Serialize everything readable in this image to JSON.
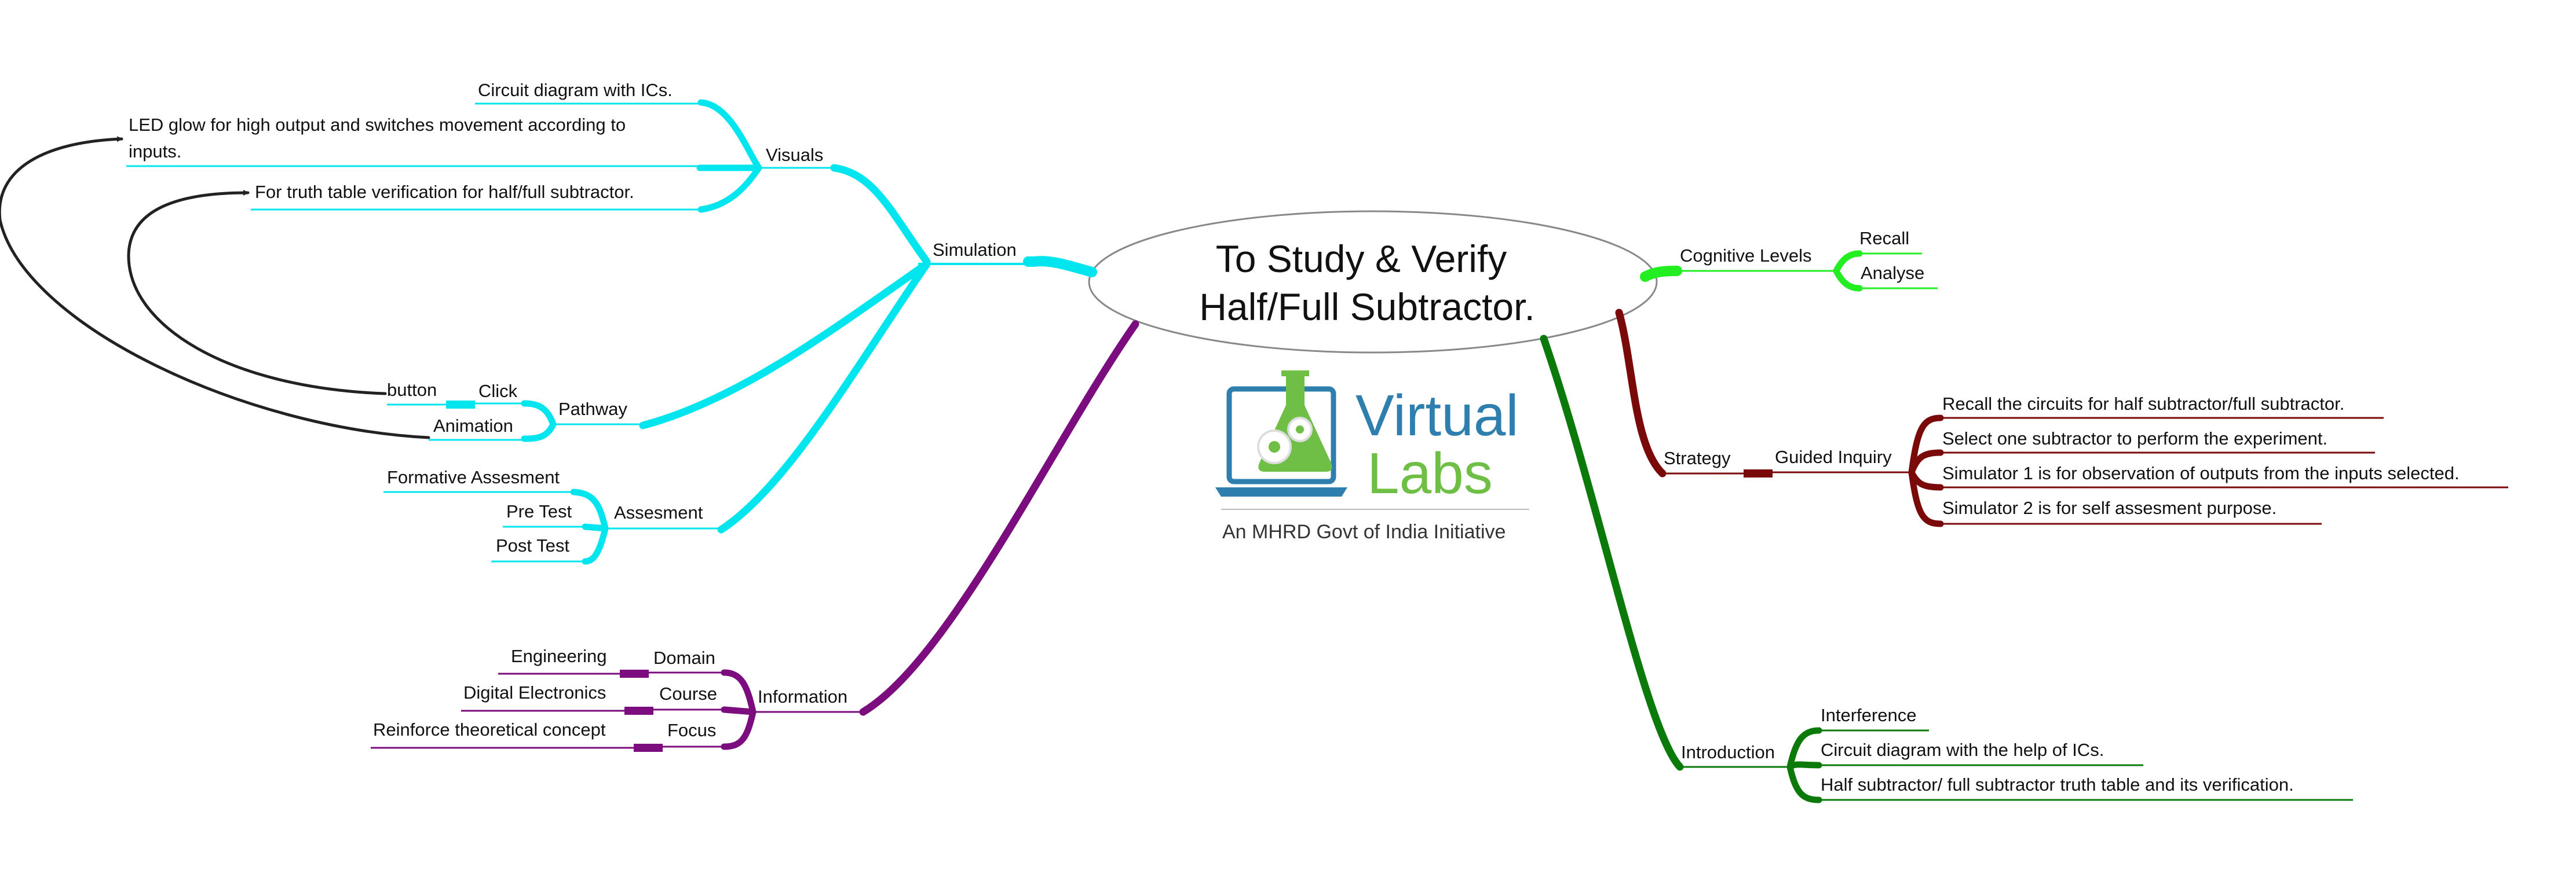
{
  "central_topic": {
    "line1": "To Study & Verify",
    "line2": "Half/Full Subtractor."
  },
  "logo": {
    "word1": "Virtual",
    "word2": "Labs",
    "tagline": "An MHRD Govt of India Initiative"
  },
  "colors": {
    "simulation": "#00e5ee",
    "information": "#7b0d7e",
    "cognitive": "#22ee22",
    "strategy": "#7a0a0a",
    "introduction": "#0b7a0b",
    "arrows": "#222222",
    "logo_blue": "#2f7fae",
    "logo_green": "#6fbe46"
  },
  "branches": {
    "simulation": {
      "label": "Simulation",
      "visuals": {
        "label": "Visuals",
        "items": [
          "Circuit diagram with ICs.",
          "LED glow for high output and switches movement according to",
          "inputs.",
          "For truth table verification for half/full subtractor."
        ]
      },
      "pathway": {
        "label": "Pathway",
        "click": {
          "label": "Click",
          "child": "button"
        },
        "animation": "Animation"
      },
      "assesment": {
        "label": "Assesment",
        "items": [
          "Formative Assesment",
          "Pre Test",
          "Post Test"
        ]
      }
    },
    "information": {
      "label": "Information",
      "domain": {
        "label": "Domain",
        "value": "Engineering"
      },
      "course": {
        "label": "Course",
        "value": "Digital Electronics"
      },
      "focus": {
        "label": "Focus",
        "value": "Reinforce theoretical concept"
      }
    },
    "cognitive_levels": {
      "label": "Cognitive Levels",
      "items": [
        "Recall",
        "Analyse"
      ]
    },
    "strategy": {
      "label": "Strategy",
      "guided_inquiry": {
        "label": "Guided Inquiry",
        "items": [
          "Recall the circuits for half subtractor/full subtractor.",
          "Select one subtractor to perform the experiment.",
          "Simulator 1 is for observation of outputs from the inputs selected.",
          "Simulator 2 is for self assesment purpose."
        ]
      }
    },
    "introduction": {
      "label": "Introduction",
      "items": [
        "Interference",
        "Circuit diagram with the help of ICs.",
        "Half subtractor/ full subtractor truth table and its verification."
      ]
    }
  }
}
